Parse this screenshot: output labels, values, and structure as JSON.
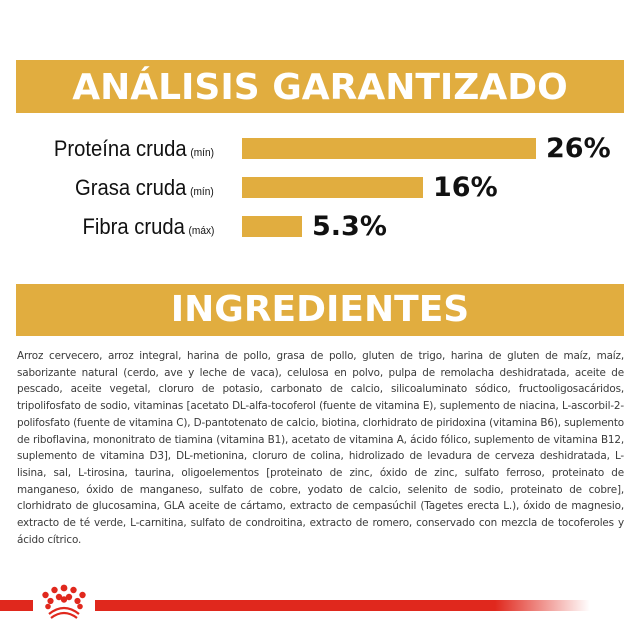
{
  "analysis": {
    "title": "ANÁLISIS GARANTIZADO",
    "rows": [
      {
        "label": "Proteína cruda",
        "qualifier": "(mín)",
        "value": "26%"
      },
      {
        "label": "Grasa cruda",
        "qualifier": "(mín)",
        "value": "16%"
      },
      {
        "label": "Fibra cruda",
        "qualifier": "(máx)",
        "value": "5.3%"
      }
    ]
  },
  "ingredients": {
    "title": "INGREDIENTES",
    "text": "Arroz cervecero, arroz integral, harina de pollo, grasa de pollo, gluten de trigo, harina de gluten de maíz, maíz, saborizante natural (cerdo, ave y leche de vaca), celulosa en polvo, pulpa de remolacha deshidratada, aceite de pescado, aceite vegetal, cloruro de potasio, carbonato de calcio, silicoaluminato sódico, fructooligosacáridos, tripolifosfato de sodio, vitaminas [acetato DL-alfa-tocoferol (fuente de vitamina E), suplemento de niacina, L-ascorbil-2-polifosfato (fuente de vitamina C), D-pantotenato de calcio, biotina, clorhidrato de piridoxina (vitamina B6), suplemento de riboflavina, mononitrato de tiamina (vitamina B1), acetato de vitamina A, ácido fólico, suplemento de vitamina B12, suplemento de vitamina D3], DL-metionina, cloruro de colina, hidrolizado de levadura de cerveza deshidratada, L-lisina, sal, L-tirosina, taurina, oligoelementos [proteinato de zinc, óxido de zinc, sulfato ferroso, proteinato de manganeso, óxido de manganeso, sulfato de cobre, yodato de calcio, selenito de sodio, proteinato de cobre], clorhidrato de glucosamina, GLA aceite de cártamo, extracto de cempasúchil (Tagetes erecta L.), óxido de magnesio, extracto de té verde, L-carnitina, sulfato de condroitina, extracto de romero, conservado con mezcla de tocoferoles y ácido cítrico."
  },
  "footer": {
    "logo_icon": "crown-icon"
  },
  "colors": {
    "accent": "#e1ad3f",
    "brand_red": "#e0281d",
    "text": "#111111"
  },
  "chart_data": {
    "type": "bar",
    "orientation": "horizontal",
    "title": "ANÁLISIS GARANTIZADO",
    "categories": [
      "Proteína cruda (mín)",
      "Grasa cruda (mín)",
      "Fibra cruda (máx)"
    ],
    "values": [
      26,
      16,
      5.3
    ],
    "value_labels": [
      "26%",
      "16%",
      "5.3%"
    ],
    "xlabel": "",
    "ylabel": "",
    "unit": "%",
    "grid": false,
    "legend": null
  }
}
